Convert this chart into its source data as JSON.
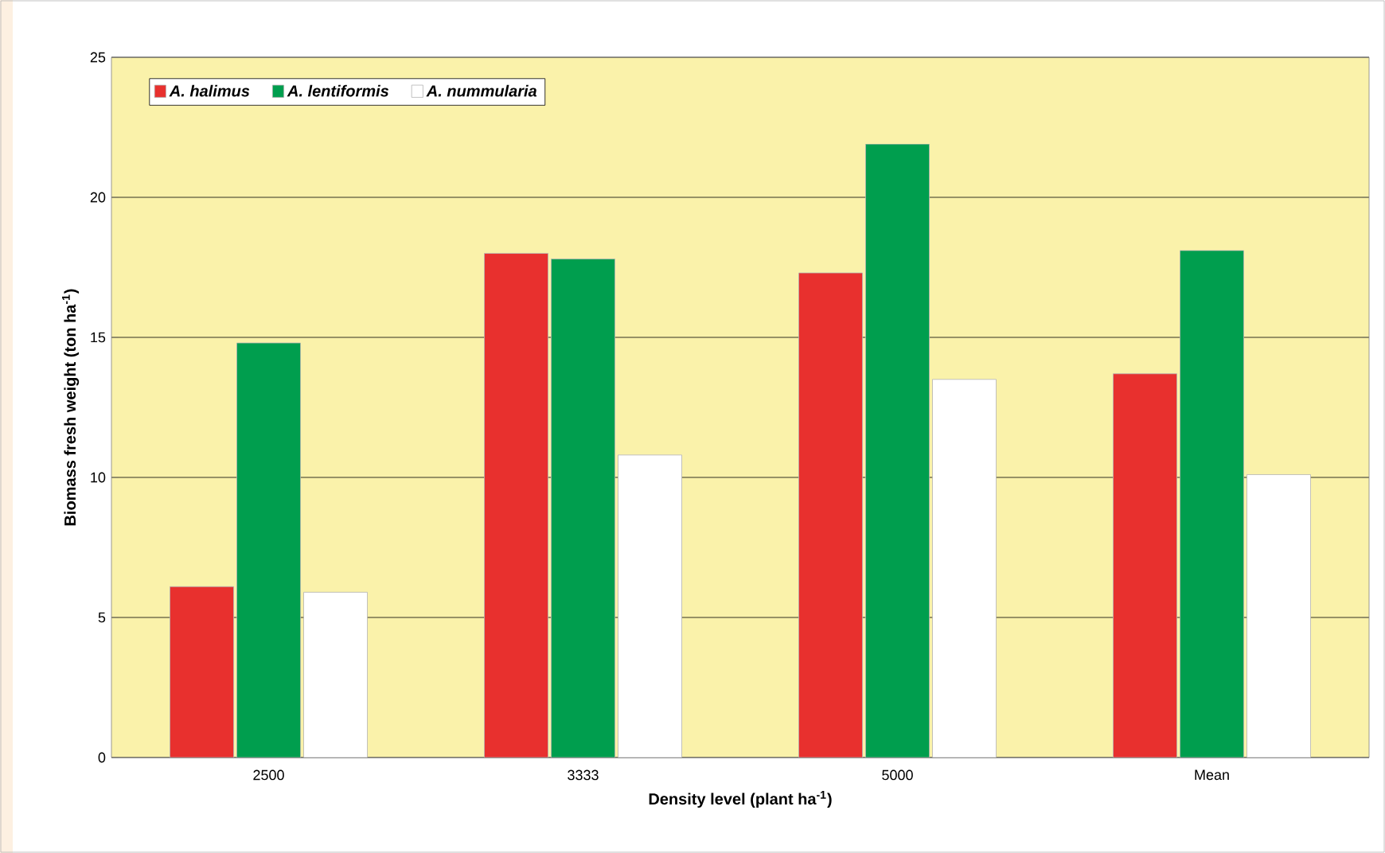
{
  "chart_data": {
    "type": "bar",
    "xlabel": "Density level (plant ha$^{-1}$)",
    "ylabel": "Biomass fresh weight  (ton ha$^{-1}$)",
    "categories": [
      "2500",
      "3333",
      "5000",
      "Mean"
    ],
    "series": [
      {
        "name": "A. halimus",
        "color": "#e8302e",
        "values": [
          6.1,
          18.0,
          17.3,
          13.7
        ]
      },
      {
        "name": "A. lentiformis",
        "color": "#009e4e",
        "values": [
          14.8,
          17.8,
          21.9,
          18.1
        ]
      },
      {
        "name": "A. nummularia",
        "color": "#ffffff",
        "values": [
          5.9,
          10.8,
          13.5,
          10.1
        ]
      }
    ],
    "ylim": [
      0,
      25
    ],
    "yticks": [
      0,
      5,
      10,
      15,
      20,
      25
    ],
    "grid": "y",
    "legend": "top left"
  }
}
